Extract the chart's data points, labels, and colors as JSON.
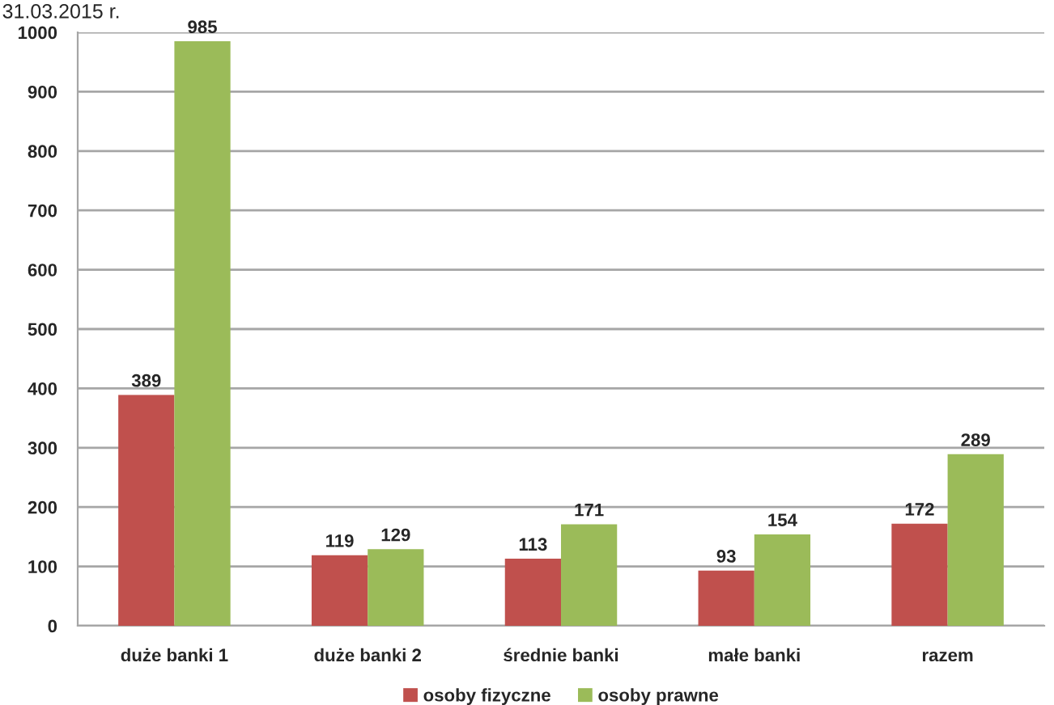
{
  "chart_data": {
    "type": "bar",
    "title": "31.03.2015 r.",
    "categories": [
      "duże banki 1",
      "duże banki 2",
      "średnie banki",
      "małe banki",
      "razem"
    ],
    "series": [
      {
        "name": "osoby fizyczne",
        "color": "#c0504d",
        "values": [
          389,
          119,
          113,
          93,
          172
        ]
      },
      {
        "name": "osoby prawne",
        "color": "#9bbb59",
        "values": [
          985,
          129,
          171,
          154,
          289
        ]
      }
    ],
    "ylim": [
      0,
      1000
    ],
    "yticks": [
      0,
      100,
      200,
      300,
      400,
      500,
      600,
      700,
      800,
      900,
      1000
    ],
    "grid": "y",
    "legend": "bottom",
    "data_labels": true
  }
}
